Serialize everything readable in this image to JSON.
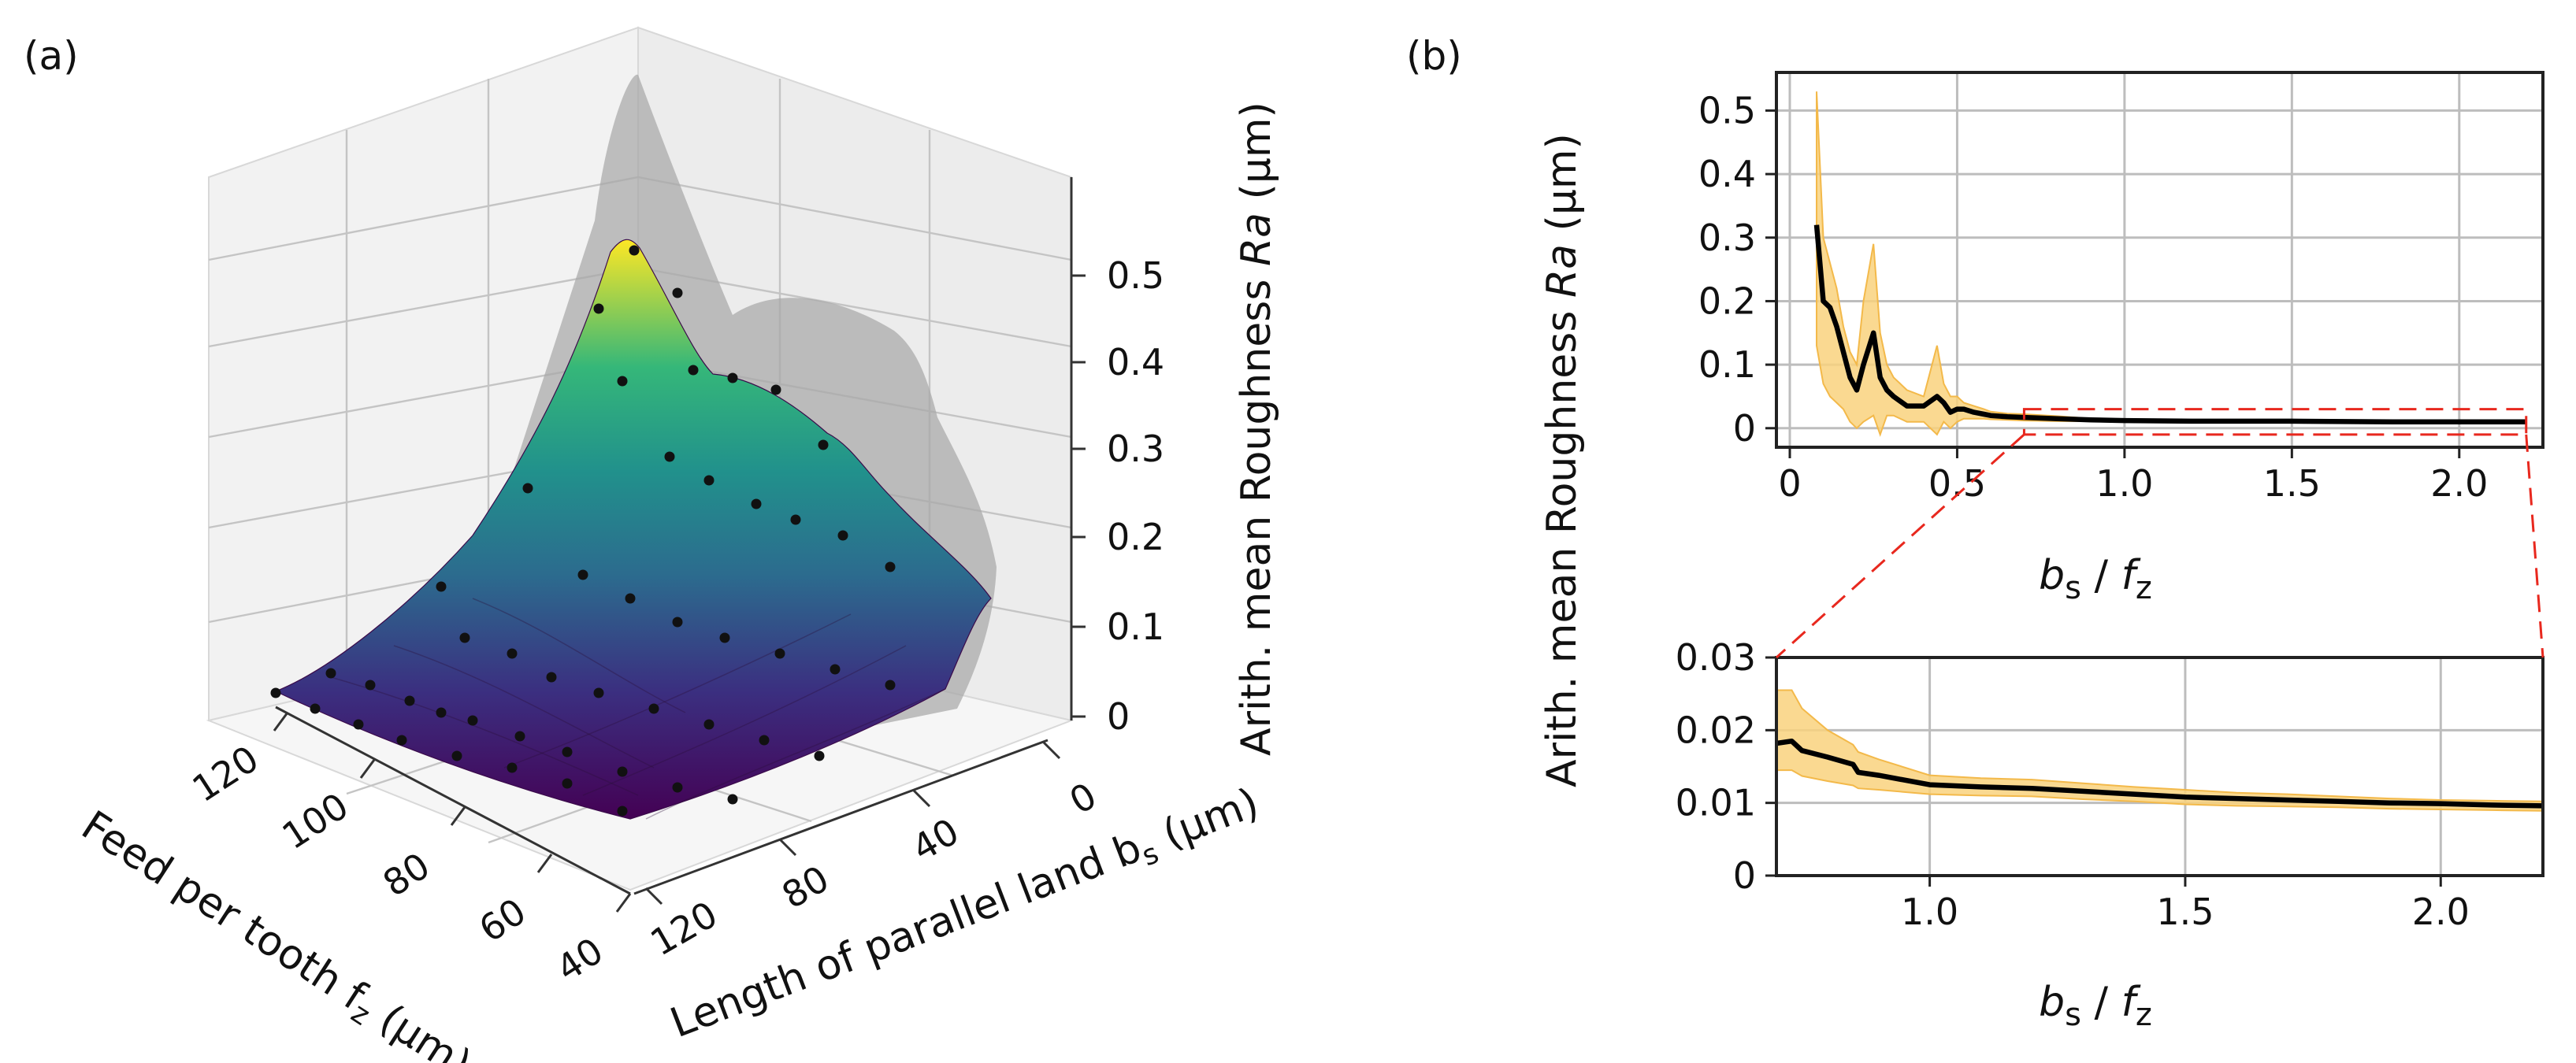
{
  "panel_a": {
    "label": "(a)",
    "x_label": "Feed per tooth f",
    "x_label_sub": "z",
    "x_label_unit": " (μm)",
    "y_label": "Length of parallel land b",
    "y_label_sub": "s",
    "y_label_unit": " (μm)",
    "z_label": "Arith. mean Roughness ",
    "z_label_italic": "Ra",
    "z_label_unit": " (μm)"
  },
  "panel_b": {
    "label": "(b)",
    "y_label": "Arith. mean Roughness ",
    "y_label_italic": "Ra",
    "y_label_unit": " (μm)",
    "x_label_b": "b",
    "x_label_b_sub": "s",
    "x_label_slash": " / ",
    "x_label_f": "f",
    "x_label_f_sub": "z"
  },
  "colors": {
    "line": "#000000",
    "band": "#f9d27e",
    "band_edge": "#f3b94a",
    "zoom_box": "#e8281e",
    "surface_low": "#440154",
    "surface_mid": "#21918c",
    "surface_high": "#fde725",
    "shadow": "#9c9c9c"
  },
  "chart_data": [
    {
      "type": "surface3d",
      "title": "",
      "xlabel": "Feed per tooth fz (μm)",
      "ylabel": "Length of parallel land bs (μm)",
      "zlabel": "Arith. mean Roughness Ra (μm)",
      "x_ticks": [
        "120",
        "100",
        "80",
        "60",
        "40"
      ],
      "y_ticks": [
        "0",
        "40",
        "80",
        "120"
      ],
      "z_ticks": [
        "0",
        "0.1",
        "0.2",
        "0.3",
        "0.4",
        "0.5"
      ],
      "x_range": [
        30,
        130
      ],
      "y_range": [
        0,
        130
      ],
      "z_range": [
        0,
        0.55
      ],
      "peak": {
        "fz": 30,
        "bs": 0,
        "Ra": 0.5
      }
    },
    {
      "type": "line",
      "xlabel": "bs / fz",
      "ylabel": "Arith. mean Roughness Ra (μm)",
      "x_ticks": [
        "0",
        "0.5",
        "1.0",
        "1.5",
        "2.0"
      ],
      "y_ticks": [
        "0",
        "0.1",
        "0.2",
        "0.3",
        "0.4",
        "0.5"
      ],
      "xlim": [
        -0.04,
        2.25
      ],
      "ylim": [
        -0.03,
        0.56
      ],
      "series": [
        {
          "name": "mean Ra",
          "x": [
            0.08,
            0.1,
            0.12,
            0.14,
            0.16,
            0.18,
            0.2,
            0.22,
            0.25,
            0.27,
            0.29,
            0.31,
            0.35,
            0.4,
            0.44,
            0.46,
            0.48,
            0.5,
            0.52,
            0.55,
            0.58,
            0.6,
            0.65,
            0.7,
            0.8,
            0.9,
            1.0,
            1.2,
            1.5,
            1.8,
            2.0,
            2.2
          ],
          "y": [
            0.32,
            0.2,
            0.19,
            0.16,
            0.12,
            0.08,
            0.06,
            0.1,
            0.15,
            0.08,
            0.06,
            0.05,
            0.035,
            0.035,
            0.05,
            0.04,
            0.025,
            0.03,
            0.03,
            0.025,
            0.022,
            0.02,
            0.018,
            0.017,
            0.015,
            0.013,
            0.012,
            0.011,
            0.011,
            0.01,
            0.01,
            0.01
          ]
        }
      ],
      "band": {
        "x": [
          0.08,
          0.1,
          0.12,
          0.14,
          0.16,
          0.18,
          0.2,
          0.22,
          0.25,
          0.27,
          0.29,
          0.31,
          0.35,
          0.4,
          0.44,
          0.46,
          0.48,
          0.5,
          0.52,
          0.55,
          0.58,
          0.6,
          0.65,
          0.7,
          0.8,
          0.9,
          1.0,
          1.2,
          1.5,
          1.8,
          2.0,
          2.2
        ],
        "upper": [
          0.53,
          0.3,
          0.26,
          0.22,
          0.16,
          0.12,
          0.1,
          0.2,
          0.29,
          0.15,
          0.1,
          0.08,
          0.06,
          0.05,
          0.13,
          0.07,
          0.05,
          0.05,
          0.04,
          0.035,
          0.03,
          0.026,
          0.023,
          0.022,
          0.019,
          0.015,
          0.014,
          0.013,
          0.012,
          0.011,
          0.011,
          0.011
        ],
        "lower": [
          0.13,
          0.07,
          0.05,
          0.04,
          0.03,
          0.01,
          0.0,
          0.01,
          0.02,
          -0.01,
          0.02,
          0.02,
          0.01,
          0.01,
          -0.01,
          0.01,
          0.0,
          0.01,
          0.015,
          0.015,
          0.015,
          0.014,
          0.013,
          0.012,
          0.011,
          0.011,
          0.01,
          0.01,
          0.01,
          0.009,
          0.009,
          0.009
        ]
      },
      "zoom_box": {
        "x": [
          0.7,
          2.2
        ],
        "y": [
          -0.01,
          0.03
        ]
      }
    },
    {
      "type": "line",
      "xlabel": "bs / fz",
      "ylabel": "",
      "x_ticks": [
        "1.0",
        "1.5",
        "2.0"
      ],
      "y_ticks": [
        "0",
        "0.01",
        "0.02",
        "0.03"
      ],
      "xlim": [
        0.7,
        2.2
      ],
      "ylim": [
        0,
        0.03
      ],
      "series": [
        {
          "name": "mean Ra (zoom)",
          "x": [
            0.7,
            0.73,
            0.75,
            0.8,
            0.85,
            0.86,
            0.9,
            1.0,
            1.1,
            1.2,
            1.3,
            1.4,
            1.5,
            1.6,
            1.7,
            1.8,
            1.9,
            2.0,
            2.1,
            2.2
          ],
          "y": [
            0.0182,
            0.0185,
            0.0172,
            0.0163,
            0.0153,
            0.0142,
            0.0138,
            0.0125,
            0.0122,
            0.012,
            0.0116,
            0.0112,
            0.0108,
            0.0106,
            0.0104,
            0.0102,
            0.01,
            0.0099,
            0.0097,
            0.0096
          ]
        }
      ],
      "band": {
        "x": [
          0.7,
          0.73,
          0.75,
          0.8,
          0.85,
          0.86,
          0.9,
          1.0,
          1.1,
          1.2,
          1.3,
          1.4,
          1.5,
          1.6,
          1.7,
          1.8,
          1.9,
          2.0,
          2.1,
          2.2
        ],
        "upper": [
          0.0255,
          0.0255,
          0.023,
          0.02,
          0.018,
          0.017,
          0.016,
          0.0138,
          0.0134,
          0.0132,
          0.0127,
          0.0122,
          0.0118,
          0.0114,
          0.0112,
          0.0109,
          0.0106,
          0.0104,
          0.0103,
          0.0102
        ],
        "lower": [
          0.0145,
          0.0145,
          0.0137,
          0.013,
          0.0124,
          0.012,
          0.0118,
          0.0112,
          0.011,
          0.0109,
          0.0105,
          0.0102,
          0.0098,
          0.0096,
          0.0095,
          0.0094,
          0.0092,
          0.0091,
          0.009,
          0.0089
        ]
      }
    }
  ]
}
